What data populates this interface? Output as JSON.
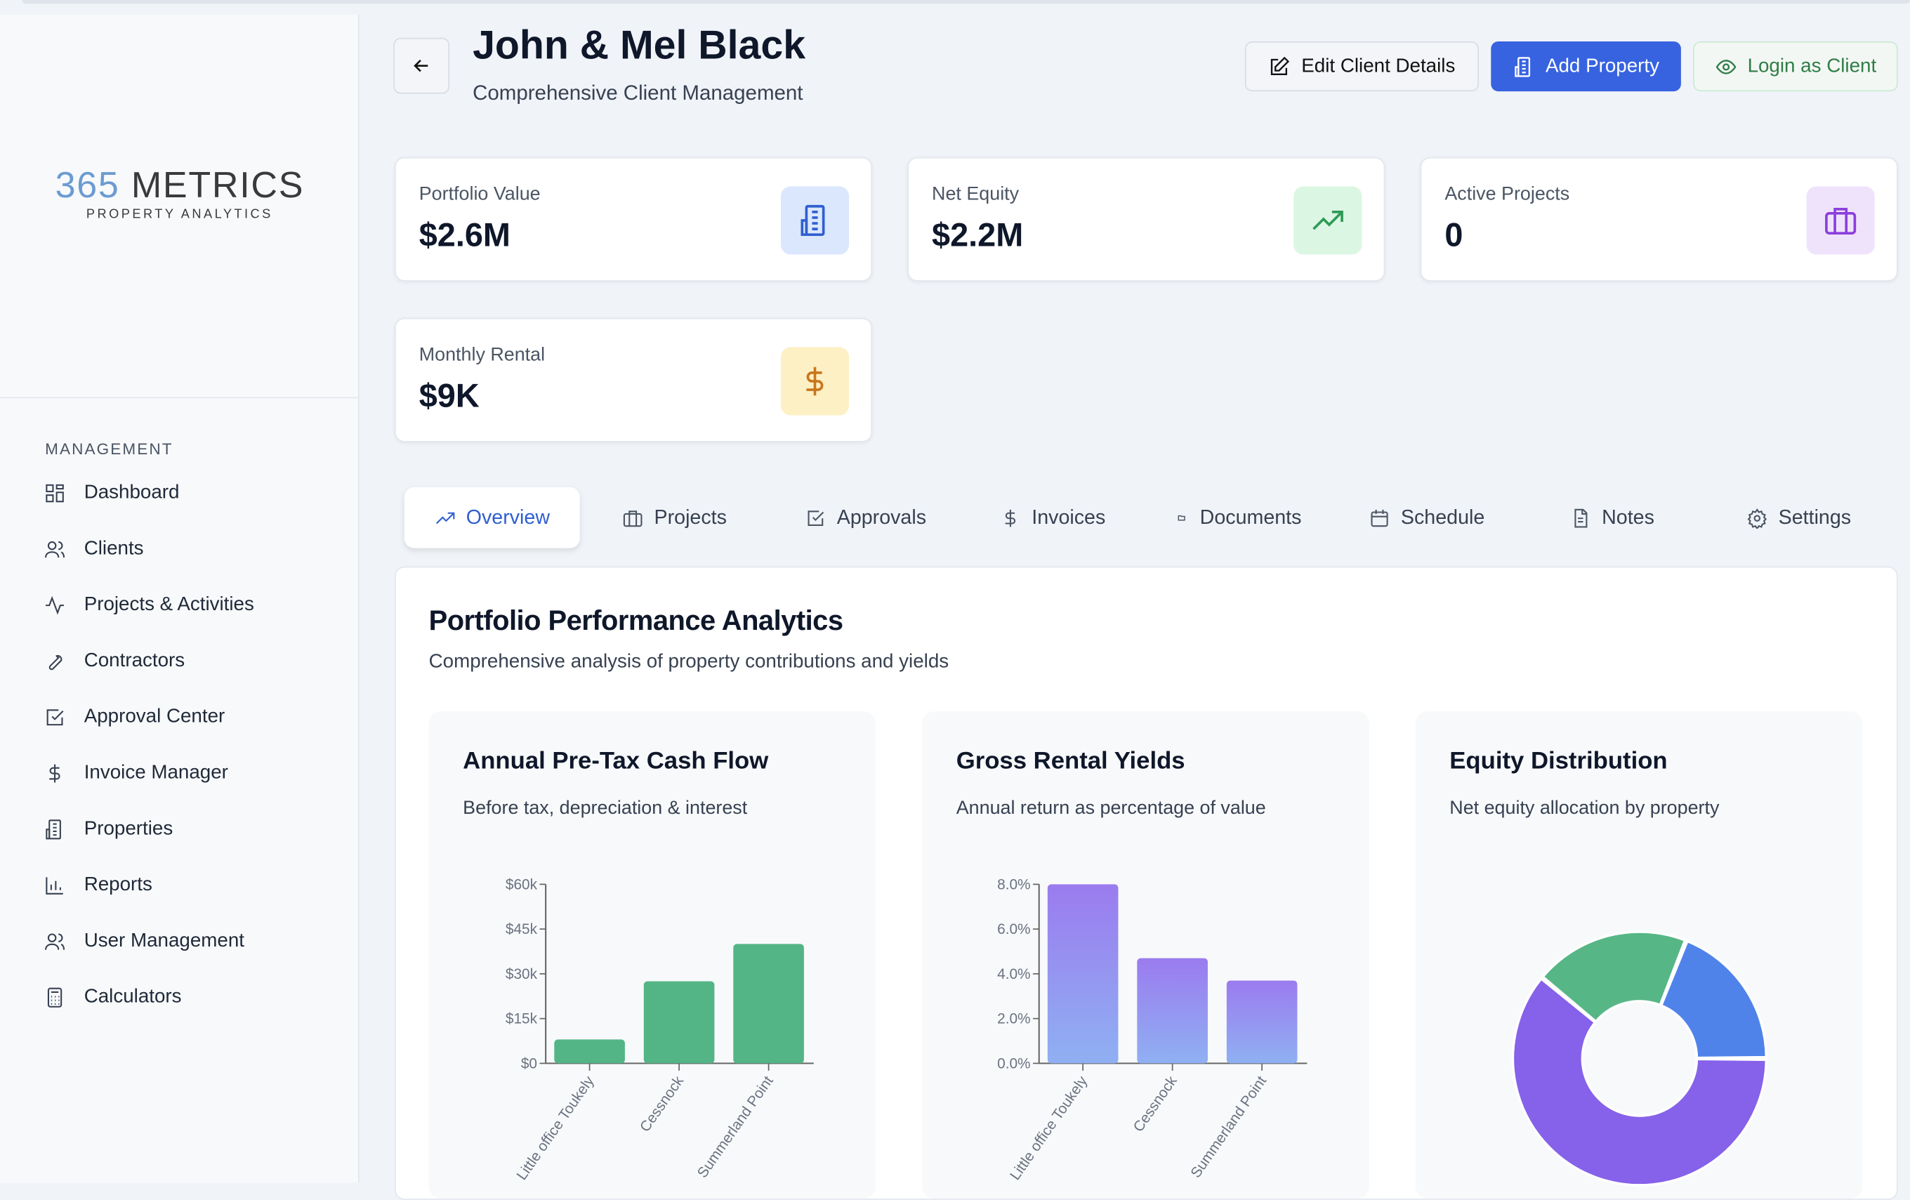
{
  "sidebar": {
    "logo": {
      "number": "365",
      "word": "METRICS",
      "tagline": "PROPERTY ANALYTICS"
    },
    "section_label": "MANAGEMENT",
    "items": [
      {
        "label": "Dashboard",
        "icon": "grid-icon"
      },
      {
        "label": "Clients",
        "icon": "users-icon"
      },
      {
        "label": "Projects & Activities",
        "icon": "activity-icon"
      },
      {
        "label": "Contractors",
        "icon": "wrench-icon"
      },
      {
        "label": "Approval Center",
        "icon": "check-square-icon"
      },
      {
        "label": "Invoice Manager",
        "icon": "dollar-icon"
      },
      {
        "label": "Properties",
        "icon": "building-icon"
      },
      {
        "label": "Reports",
        "icon": "bar-chart-icon"
      },
      {
        "label": "User Management",
        "icon": "users-icon"
      },
      {
        "label": "Calculators",
        "icon": "calculator-icon"
      }
    ]
  },
  "header": {
    "title": "John & Mel Black",
    "subtitle": "Comprehensive Client Management",
    "buttons": {
      "edit": "Edit Client Details",
      "add": "Add Property",
      "login": "Login as Client"
    }
  },
  "stats": [
    {
      "label": "Portfolio Value",
      "value": "$2.6M",
      "icon": "building-icon",
      "color": "#2f5fd0",
      "bg": "#dbe7fd"
    },
    {
      "label": "Net Equity",
      "value": "$2.2M",
      "icon": "trending-up-icon",
      "color": "#2f9a55",
      "bg": "#dcf6e4"
    },
    {
      "label": "Active Projects",
      "value": "0",
      "icon": "briefcase-icon",
      "color": "#8b3fdc",
      "bg": "#efe3fc"
    },
    {
      "label": "Monthly Rental",
      "value": "$9K",
      "icon": "dollar-icon",
      "color": "#c9761b",
      "bg": "#fdf0c4"
    }
  ],
  "tabs": [
    {
      "label": "Overview",
      "icon": "trending-up-icon",
      "active": true
    },
    {
      "label": "Projects",
      "icon": "briefcase-icon"
    },
    {
      "label": "Approvals",
      "icon": "check-square-icon"
    },
    {
      "label": "Invoices",
      "icon": "dollar-icon"
    },
    {
      "label": "Documents",
      "icon": "folder-icon"
    },
    {
      "label": "Schedule",
      "icon": "calendar-icon"
    },
    {
      "label": "Notes",
      "icon": "file-icon"
    },
    {
      "label": "Settings",
      "icon": "gear-icon"
    }
  ],
  "analytics": {
    "title": "Portfolio Performance Analytics",
    "subtitle": "Comprehensive analysis of property contributions and yields"
  },
  "chart_data": [
    {
      "type": "bar",
      "title": "Annual Pre-Tax Cash Flow",
      "subtitle": "Before tax, depreciation & interest",
      "categories": [
        "Little office Toukely",
        "Cessnock",
        "Summerland Point"
      ],
      "values": [
        8000,
        27500,
        40000
      ],
      "ylim": [
        0,
        60000
      ],
      "yticks": [
        "$0",
        "$15k",
        "$30k",
        "$45k",
        "$60k"
      ],
      "color": "#53b585",
      "grid": false
    },
    {
      "type": "bar",
      "title": "Gross Rental Yields",
      "subtitle": "Annual return as percentage of value",
      "categories": [
        "Little office Toukely",
        "Cessnock",
        "Summerland Point"
      ],
      "values": [
        8.0,
        4.7,
        3.7
      ],
      "ylim": [
        0,
        8
      ],
      "yticks": [
        "0.0%",
        "2.0%",
        "4.0%",
        "6.0%",
        "8.0%"
      ],
      "color_top": "#9b7bef",
      "color_bottom": "#8fb0f2",
      "grid": false
    },
    {
      "type": "pie",
      "title": "Equity Distribution",
      "subtitle": "Net equity allocation by property",
      "values": [
        61,
        20,
        19
      ],
      "colors": [
        "#8661e9",
        "#57b686",
        "#5083ea"
      ],
      "donut": true
    }
  ]
}
